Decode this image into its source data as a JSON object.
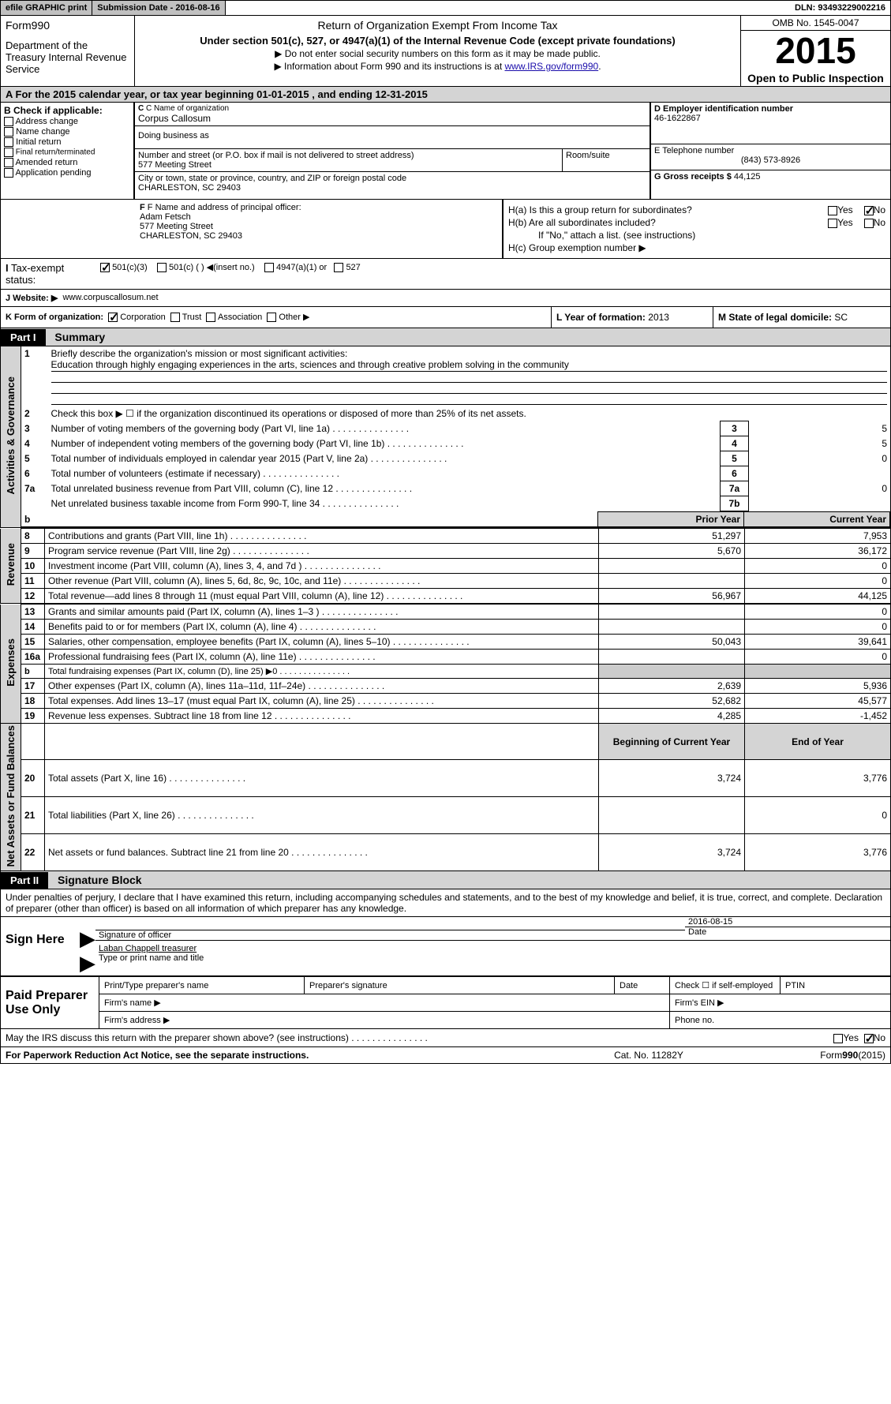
{
  "topbar": {
    "efile": "efile GRAPHIC print",
    "submission": "Submission Date - 2016-08-16",
    "dln": "DLN: 93493229002216"
  },
  "header": {
    "form": "Form990",
    "dept": "Department of the Treasury Internal Revenue Service",
    "title": "Return of Organization Exempt From Income Tax",
    "subtitle": "Under section 501(c), 527, or 4947(a)(1) of the Internal Revenue Code (except private foundations)",
    "note1": "▶ Do not enter social security numbers on this form as it may be made public.",
    "note2a": "▶ Information about Form 990 and its instructions is at ",
    "note2link": "www.IRS.gov/form990",
    "note2b": ".",
    "omb": "OMB No. 1545-0047",
    "year": "2015",
    "open": "Open to Public Inspection"
  },
  "rowA": "A   For the 2015 calendar year, or tax year beginning 01-01-2015   , and ending 12-31-2015",
  "sectionB": {
    "label": "B Check if applicable:",
    "items": [
      "Address change",
      "Name change",
      "Initial return",
      "Final return/terminated",
      "Amended return",
      "Application pending"
    ]
  },
  "sectionC": {
    "nameLabel": "C Name of organization",
    "name": "Corpus Callosum",
    "dbaLabel": "Doing business as",
    "streetLabel": "Number and street (or P.O. box if mail is not delivered to street address)",
    "roomLabel": "Room/suite",
    "street": "577 Meeting Street",
    "cityLabel": "City or town, state or province, country, and ZIP or foreign postal code",
    "city": "CHARLESTON, SC  29403"
  },
  "sectionD": {
    "label": "D Employer identification number",
    "value": "46-1622867"
  },
  "sectionE": {
    "label": "E Telephone number",
    "value": "(843) 573-8926"
  },
  "sectionG": {
    "label": "G Gross receipts $",
    "value": "44,125"
  },
  "sectionF": {
    "label": "F  Name and address of principal officer:",
    "name": "Adam Fetsch",
    "street": "577 Meeting Street",
    "city": "CHARLESTON, SC  29403"
  },
  "sectionH": {
    "a": "H(a)  Is this a group return for subordinates?",
    "b": "H(b)  Are all subordinates included?",
    "bnote": "If \"No,\" attach a list. (see instructions)",
    "c": "H(c)  Group exemption number ▶"
  },
  "sectionI": {
    "label": "I   Tax-exempt status:",
    "opt1": "501(c)(3)",
    "opt2": "501(c) (  ) ◀(insert no.)",
    "opt3": "4947(a)(1) or",
    "opt4": "527"
  },
  "sectionJ": {
    "label": "J   Website: ▶",
    "value": "www.corpuscallosum.net"
  },
  "sectionK": {
    "label": "K Form of organization:",
    "opts": [
      "Corporation",
      "Trust",
      "Association",
      "Other ▶"
    ]
  },
  "sectionL": {
    "label": "L Year of formation:",
    "value": "2013"
  },
  "sectionM": {
    "label": "M State of legal domicile:",
    "value": "SC"
  },
  "part1": {
    "hdr": "Part I",
    "title": "Summary"
  },
  "summaryTop": {
    "q1": "Briefly describe the organization's mission or most significant activities:",
    "mission": "Education through highly engaging experiences in the arts, sciences and through creative problem solving in the community",
    "q2": "Check this box ▶ ☐ if the organization discontinued its operations or disposed of more than 25% of its net assets.",
    "rows": [
      {
        "n": "3",
        "t": "Number of voting members of the governing body (Part VI, line 1a)",
        "box": "3",
        "v": "5"
      },
      {
        "n": "4",
        "t": "Number of independent voting members of the governing body (Part VI, line 1b)",
        "box": "4",
        "v": "5"
      },
      {
        "n": "5",
        "t": "Total number of individuals employed in calendar year 2015 (Part V, line 2a)",
        "box": "5",
        "v": "0"
      },
      {
        "n": "6",
        "t": "Total number of volunteers (estimate if necessary)",
        "box": "6",
        "v": ""
      },
      {
        "n": "7a",
        "t": "Total unrelated business revenue from Part VIII, column (C), line 12",
        "box": "7a",
        "v": "0"
      },
      {
        "n": "",
        "t": "Net unrelated business taxable income from Form 990-T, line 34",
        "box": "7b",
        "v": ""
      }
    ]
  },
  "colHdrs": {
    "prior": "Prior Year",
    "current": "Current Year",
    "begin": "Beginning of Current Year",
    "end": "End of Year"
  },
  "sections": [
    {
      "vlabel": "Revenue",
      "rows": [
        {
          "n": "8",
          "t": "Contributions and grants (Part VIII, line 1h)",
          "py": "51,297",
          "cy": "7,953"
        },
        {
          "n": "9",
          "t": "Program service revenue (Part VIII, line 2g)",
          "py": "5,670",
          "cy": "36,172"
        },
        {
          "n": "10",
          "t": "Investment income (Part VIII, column (A), lines 3, 4, and 7d )",
          "py": "",
          "cy": "0"
        },
        {
          "n": "11",
          "t": "Other revenue (Part VIII, column (A), lines 5, 6d, 8c, 9c, 10c, and 11e)",
          "py": "",
          "cy": "0"
        },
        {
          "n": "12",
          "t": "Total revenue—add lines 8 through 11 (must equal Part VIII, column (A), line 12)",
          "py": "56,967",
          "cy": "44,125"
        }
      ]
    },
    {
      "vlabel": "Expenses",
      "rows": [
        {
          "n": "13",
          "t": "Grants and similar amounts paid (Part IX, column (A), lines 1–3 )",
          "py": "",
          "cy": "0"
        },
        {
          "n": "14",
          "t": "Benefits paid to or for members (Part IX, column (A), line 4)",
          "py": "",
          "cy": "0"
        },
        {
          "n": "15",
          "t": "Salaries, other compensation, employee benefits (Part IX, column (A), lines 5–10)",
          "py": "50,043",
          "cy": "39,641"
        },
        {
          "n": "16a",
          "t": "Professional fundraising fees (Part IX, column (A), line 11e)",
          "py": "",
          "cy": "0"
        },
        {
          "n": "b",
          "t": "Total fundraising expenses (Part IX, column (D), line 25) ▶0",
          "py": "shade",
          "cy": "shade",
          "small": true
        },
        {
          "n": "17",
          "t": "Other expenses (Part IX, column (A), lines 11a–11d, 11f–24e)",
          "py": "2,639",
          "cy": "5,936"
        },
        {
          "n": "18",
          "t": "Total expenses. Add lines 13–17 (must equal Part IX, column (A), line 25)",
          "py": "52,682",
          "cy": "45,577"
        },
        {
          "n": "19",
          "t": "Revenue less expenses. Subtract line 18 from line 12",
          "py": "4,285",
          "cy": "-1,452"
        }
      ]
    },
    {
      "vlabel": "Net Assets or Fund Balances",
      "hdr": true,
      "rows": [
        {
          "n": "20",
          "t": "Total assets (Part X, line 16)",
          "py": "3,724",
          "cy": "3,776"
        },
        {
          "n": "21",
          "t": "Total liabilities (Part X, line 26)",
          "py": "",
          "cy": "0"
        },
        {
          "n": "22",
          "t": "Net assets or fund balances. Subtract line 21 from line 20",
          "py": "3,724",
          "cy": "3,776"
        }
      ]
    }
  ],
  "part2": {
    "hdr": "Part II",
    "title": "Signature Block"
  },
  "perjury": "Under penalties of perjury, I declare that I have examined this return, including accompanying schedules and statements, and to the best of my knowledge and belief, it is true, correct, and complete. Declaration of preparer (other than officer) is based on all information of which preparer has any knowledge.",
  "sign": {
    "here": "Sign Here",
    "sigOfficer": "Signature of officer",
    "date": "Date",
    "dateVal": "2016-08-15",
    "nameTitle": "Laban Chappell  treasurer",
    "typeName": "Type or print name and title"
  },
  "paid": {
    "label": "Paid Preparer Use Only",
    "printName": "Print/Type preparer's name",
    "prepSig": "Preparer's signature",
    "date": "Date",
    "check": "Check ☐ if self-employed",
    "ptin": "PTIN",
    "firmName": "Firm's name    ▶",
    "firmEin": "Firm's EIN ▶",
    "firmAddr": "Firm's address ▶",
    "phone": "Phone no."
  },
  "footer": {
    "irs": "May the IRS discuss this return with the preparer shown above? (see instructions)",
    "paperwork": "For Paperwork Reduction Act Notice, see the separate instructions.",
    "cat": "Cat. No. 11282Y",
    "form": "Form990(2015)"
  },
  "yesno": {
    "yes": "Yes",
    "no": "No"
  }
}
